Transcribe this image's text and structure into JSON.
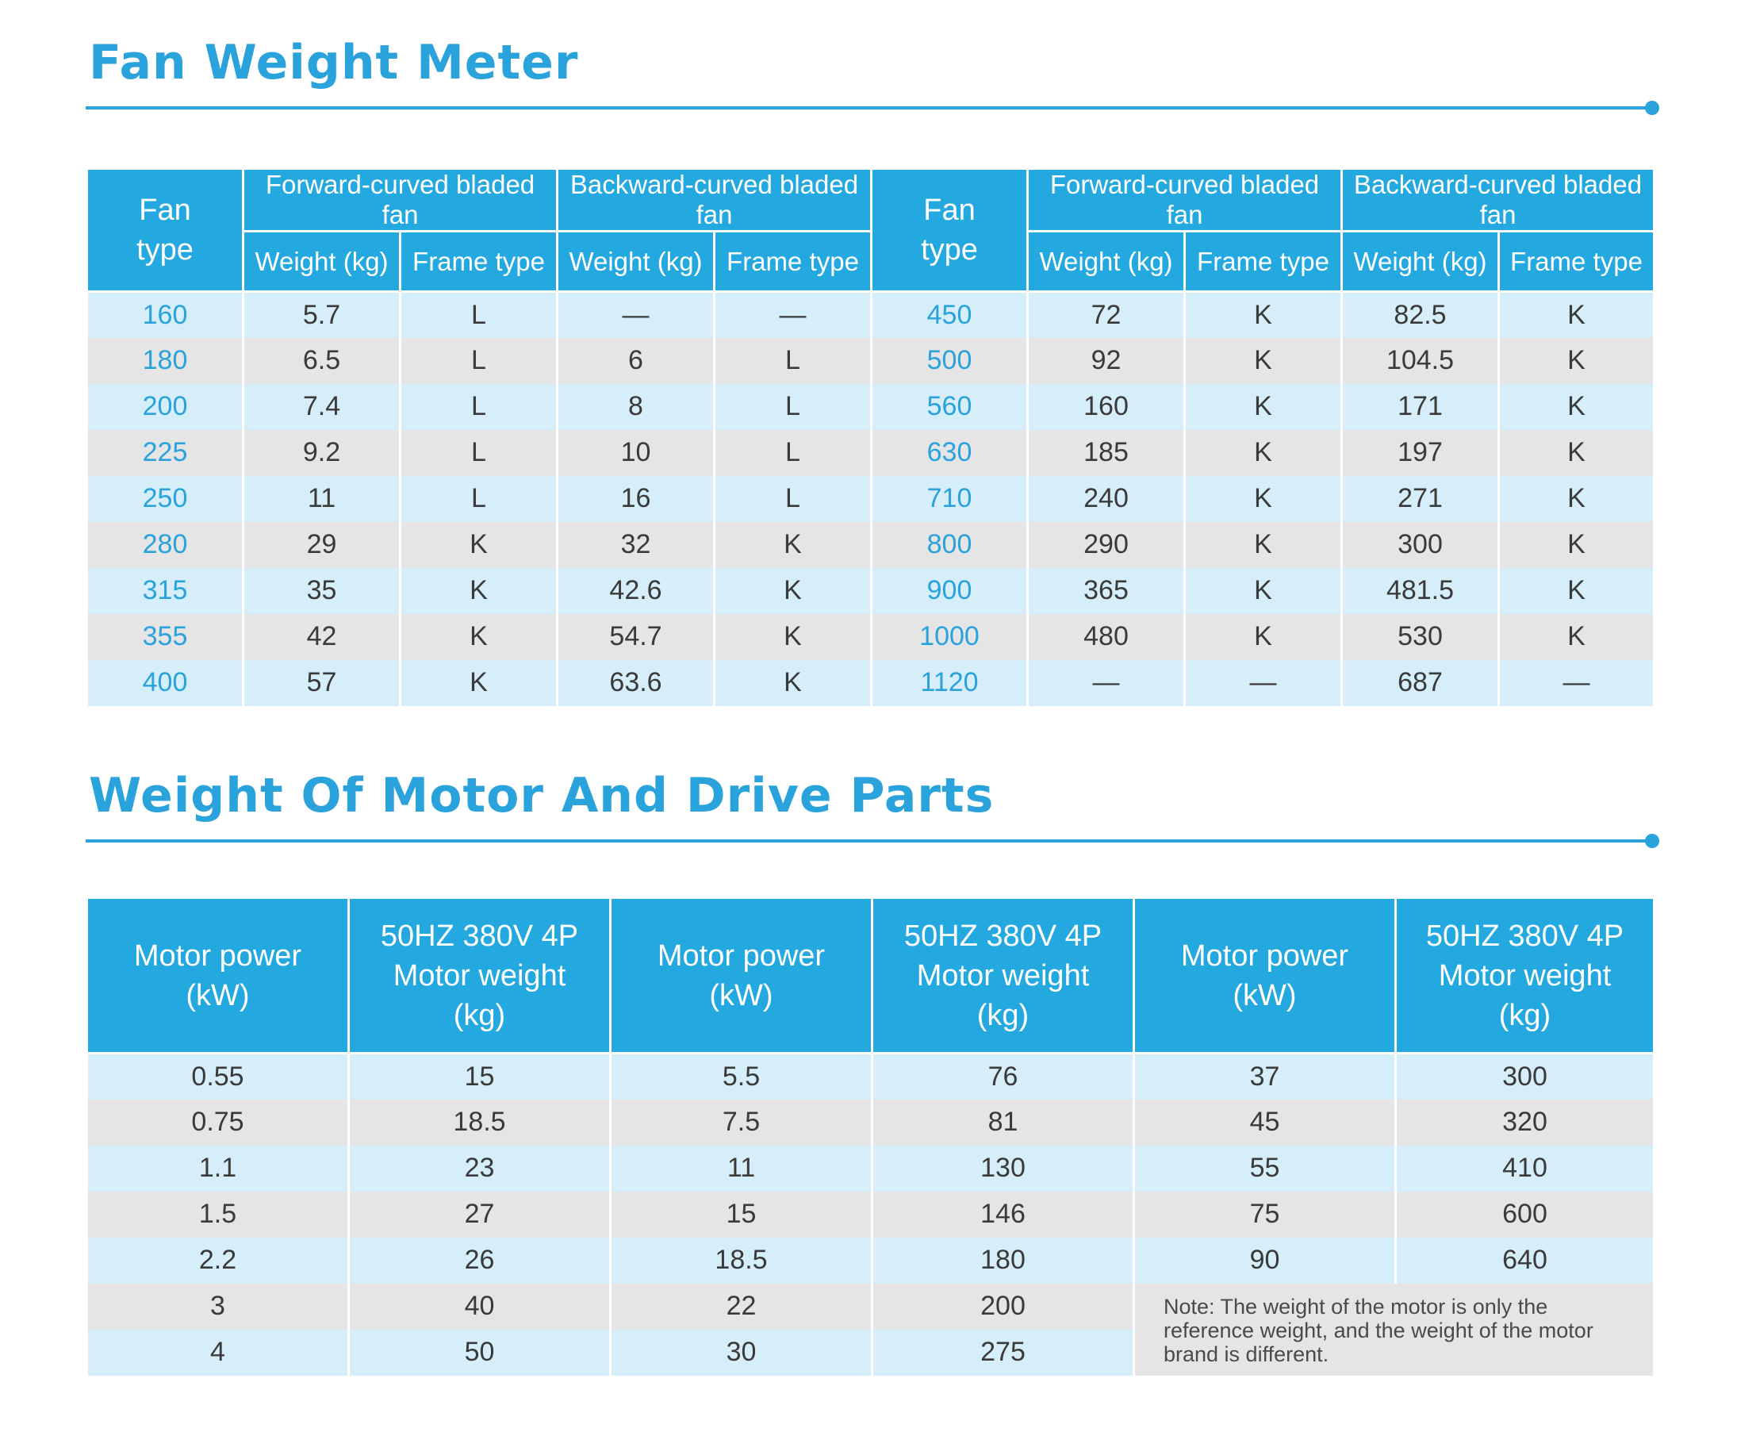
{
  "section1": {
    "title": "Fan Weight Meter",
    "headers": {
      "fan_type_line1": "Fan",
      "fan_type_line2": "type",
      "forward": "Forward-curved bladed fan",
      "backward": "Backward-curved bladed fan",
      "weight": "Weight (kg)",
      "frame": "Frame type"
    },
    "rows": [
      [
        "160",
        "5.7",
        "L",
        "—",
        "—",
        "450",
        "72",
        "K",
        "82.5",
        "K"
      ],
      [
        "180",
        "6.5",
        "L",
        "6",
        "L",
        "500",
        "92",
        "K",
        "104.5",
        "K"
      ],
      [
        "200",
        "7.4",
        "L",
        "8",
        "L",
        "560",
        "160",
        "K",
        "171",
        "K"
      ],
      [
        "225",
        "9.2",
        "L",
        "10",
        "L",
        "630",
        "185",
        "K",
        "197",
        "K"
      ],
      [
        "250",
        "11",
        "L",
        "16",
        "L",
        "710",
        "240",
        "K",
        "271",
        "K"
      ],
      [
        "280",
        "29",
        "K",
        "32",
        "K",
        "800",
        "290",
        "K",
        "300",
        "K"
      ],
      [
        "315",
        "35",
        "K",
        "42.6",
        "K",
        "900",
        "365",
        "K",
        "481.5",
        "K"
      ],
      [
        "355",
        "42",
        "K",
        "54.7",
        "K",
        "1000",
        "480",
        "K",
        "530",
        "K"
      ],
      [
        "400",
        "57",
        "K",
        "63.6",
        "K",
        "1120",
        "—",
        "—",
        "687",
        "—"
      ]
    ]
  },
  "section2": {
    "title": "Weight Of Motor And Drive Parts",
    "headers": {
      "power_line1": "Motor power",
      "power_line2": "(kW)",
      "weight_line1": "50HZ 380V 4P",
      "weight_line2": "Motor weight",
      "weight_line3": "(kg)"
    },
    "rows": [
      [
        "0.55",
        "15",
        "5.5",
        "76",
        "37",
        "300"
      ],
      [
        "0.75",
        "18.5",
        "7.5",
        "81",
        "45",
        "320"
      ],
      [
        "1.1",
        "23",
        "11",
        "130",
        "55",
        "410"
      ],
      [
        "1.5",
        "27",
        "15",
        "146",
        "75",
        "600"
      ],
      [
        "2.2",
        "26",
        "18.5",
        "180",
        "90",
        "640"
      ],
      [
        "3",
        "40",
        "22",
        "200",
        "",
        ""
      ],
      [
        "4",
        "50",
        "30",
        "275",
        "",
        ""
      ]
    ],
    "note": "Note: The weight of the motor is only the reference weight, and the weight of the motor brand is different."
  },
  "colors": {
    "accent": "#2aa2dc",
    "header_bg": "#23a8e0",
    "row_blue": "#d6eef9",
    "row_gray": "#e5e5e6"
  }
}
